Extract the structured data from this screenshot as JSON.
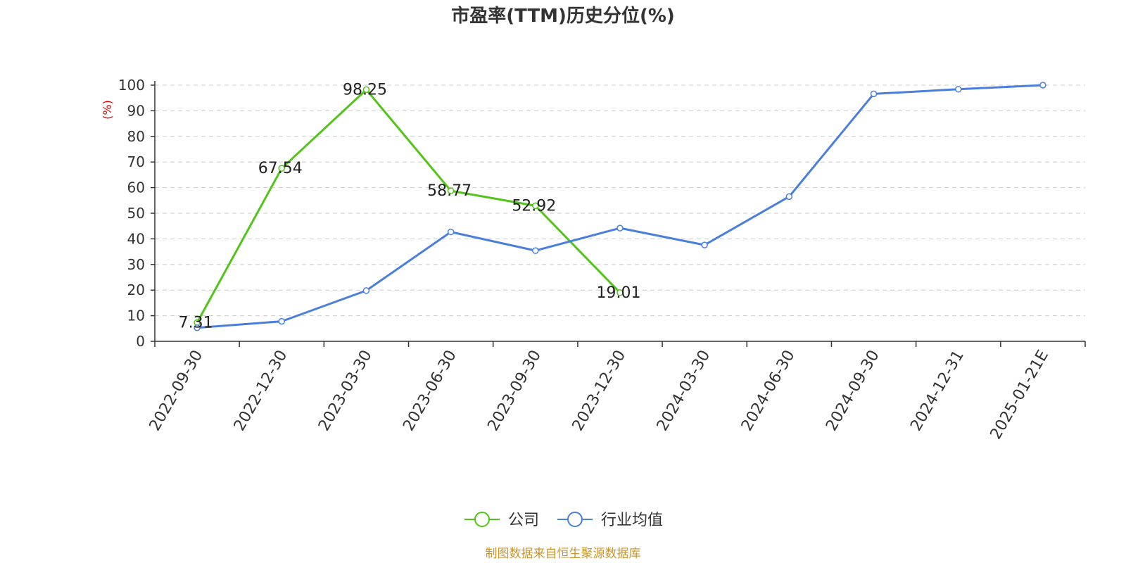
{
  "chart_data": {
    "type": "line",
    "title": "市盈率(TTM)历史分位(%)",
    "ylabel": "(%)",
    "ylim": [
      0,
      100
    ],
    "yticks": [
      0,
      10,
      20,
      30,
      40,
      50,
      60,
      70,
      80,
      90,
      100
    ],
    "grid": true,
    "legend_position": "bottom-center",
    "categories": [
      "2022-09-30",
      "2022-12-30",
      "2023-03-30",
      "2023-06-30",
      "2023-09-30",
      "2023-12-30",
      "2024-03-30",
      "2024-06-30",
      "2024-09-30",
      "2024-12-31",
      "2025-01-21E"
    ],
    "series": [
      {
        "name": "公司",
        "color": "#52c41a",
        "values": [
          7.31,
          67.54,
          98.25,
          58.77,
          52.92,
          19.01,
          null,
          null,
          null,
          null,
          null
        ],
        "labels": [
          "7.31",
          "67.54",
          "98.25",
          "58.77",
          "52.92",
          "19.01",
          null,
          null,
          null,
          null,
          null
        ]
      },
      {
        "name": "行业均值",
        "color": "#4a7fdc",
        "values": [
          5.3,
          7.8,
          19.8,
          42.7,
          35.4,
          44.2,
          37.6,
          56.5,
          96.6,
          98.4,
          100
        ],
        "labels": null
      }
    ],
    "source": "制图数据来自恒生聚源数据库"
  }
}
